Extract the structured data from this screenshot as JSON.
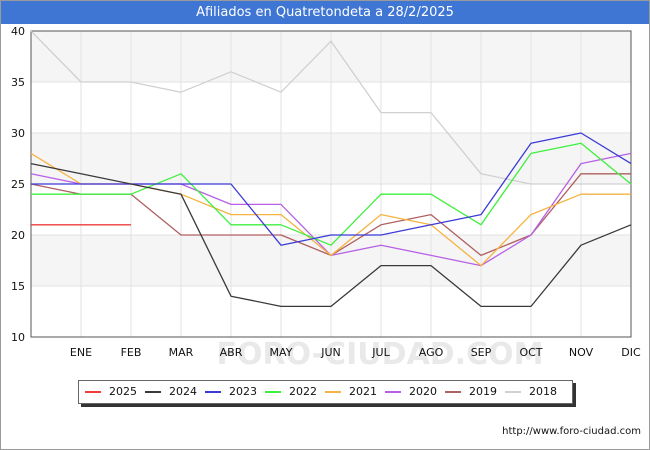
{
  "header": {
    "title": "Afiliados en Quatretondeta a 28/2/2025"
  },
  "footer": {
    "source": "http://www.foro-ciudad.com"
  },
  "watermark": "FORO-CIUDAD.COM",
  "chart_data": {
    "type": "line",
    "title": "Afiliados en Quatretondeta a 28/2/2025",
    "xlabel": "",
    "ylabel": "",
    "categories": [
      "",
      "ENE",
      "FEB",
      "MAR",
      "ABR",
      "MAY",
      "JUN",
      "JUL",
      "AGO",
      "SEP",
      "OCT",
      "NOV",
      "DIC"
    ],
    "ylim": [
      10,
      40
    ],
    "yticks": [
      10,
      15,
      20,
      25,
      30,
      35,
      40
    ],
    "grid": true,
    "legend_position": "bottom",
    "series": [
      {
        "name": "2018",
        "color": "#d0d0d0",
        "values": [
          40,
          35,
          35,
          34,
          36,
          34,
          39,
          32,
          32,
          26,
          25,
          25,
          25
        ]
      },
      {
        "name": "2019",
        "color": "#b06060",
        "values": [
          25,
          24,
          24,
          20,
          20,
          20,
          18,
          21,
          22,
          18,
          20,
          26,
          26
        ]
      },
      {
        "name": "2020",
        "color": "#b85fe6",
        "values": [
          26,
          25,
          25,
          25,
          23,
          23,
          18,
          19,
          18,
          17,
          20,
          27,
          28
        ]
      },
      {
        "name": "2021",
        "color": "#f5b340",
        "values": [
          28,
          25,
          25,
          24,
          22,
          22,
          18,
          22,
          21,
          17,
          22,
          24,
          24
        ]
      },
      {
        "name": "2022",
        "color": "#3ef03e",
        "values": [
          24,
          24,
          24,
          26,
          21,
          21,
          19,
          24,
          24,
          21,
          28,
          29,
          25
        ]
      },
      {
        "name": "2023",
        "color": "#3b3bd8",
        "values": [
          25,
          25,
          25,
          25,
          25,
          19,
          20,
          20,
          21,
          22,
          29,
          30,
          27
        ]
      },
      {
        "name": "2024",
        "color": "#3a3a3a",
        "values": [
          27,
          26,
          25,
          24,
          14,
          13,
          13,
          17,
          17,
          13,
          13,
          19,
          21
        ]
      },
      {
        "name": "2025",
        "color": "#ee3b3b",
        "values": [
          21,
          21,
          21,
          null,
          null,
          null,
          null,
          null,
          null,
          null,
          null,
          null,
          null
        ]
      }
    ],
    "legend_order": [
      "2025",
      "2024",
      "2023",
      "2022",
      "2021",
      "2020",
      "2019",
      "2018"
    ]
  }
}
